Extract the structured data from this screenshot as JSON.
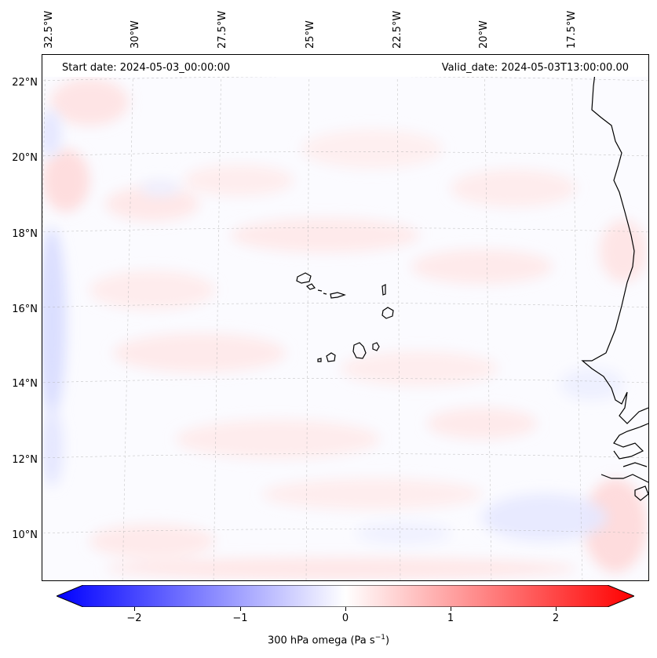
{
  "map": {
    "start_date": "Start date: 2024-05-03_00:00:00",
    "valid_date": "Valid_date: 2024-05-03T13:00:00.00",
    "lon_labels": [
      "32.5°W",
      "30°W",
      "27.5°W",
      "25°W",
      "22.5°W",
      "20°W",
      "17.5°W"
    ],
    "lat_labels": [
      "22°N",
      "20°N",
      "18°N",
      "16°N",
      "14°N",
      "12°N",
      "10°N"
    ],
    "variable": "300 hPa omega",
    "units": "Pa s",
    "units_exponent": "−1"
  },
  "colorbar": {
    "min": -2.6,
    "max": 2.6,
    "tick_values": [
      -2,
      -1,
      0,
      1,
      2
    ],
    "tick_labels": [
      "−2",
      "−1",
      "0",
      "1",
      "2"
    ],
    "colors": {
      "negative": "#0000ff",
      "zero": "#ffffff",
      "positive": "#ff0000"
    }
  },
  "chart_data": {
    "type": "heatmap",
    "title": "",
    "colorbar_label": "300 hPa omega (Pa s−1)",
    "x_ticks": [
      "32.5°W",
      "30°W",
      "27.5°W",
      "25°W",
      "22.5°W",
      "20°W",
      "17.5°W"
    ],
    "y_ticks": [
      "22°N",
      "20°N",
      "18°N",
      "16°N",
      "14°N",
      "12°N",
      "10°N"
    ],
    "zlim": [
      -2.6,
      2.6
    ],
    "grid": true
  }
}
